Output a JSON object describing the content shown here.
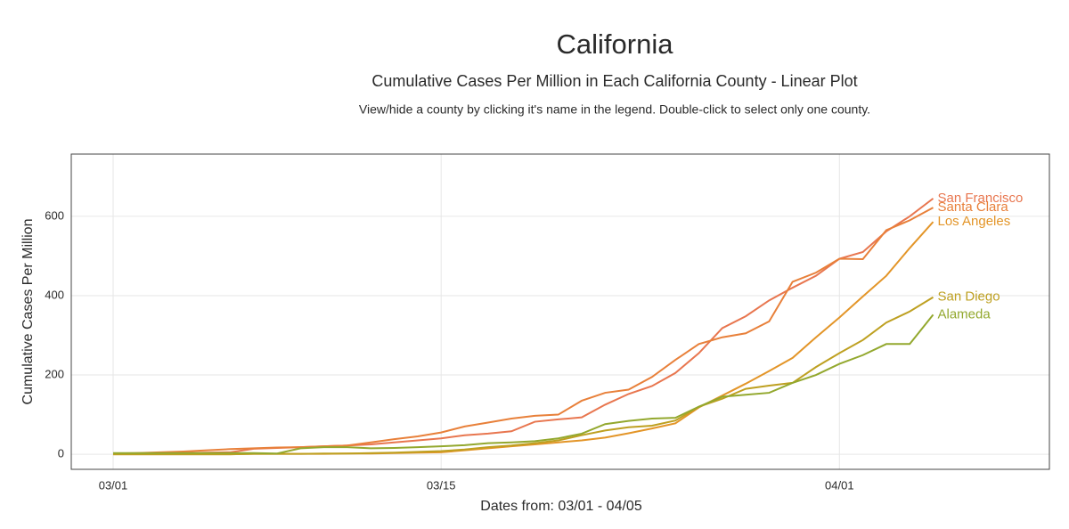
{
  "chart_data": {
    "type": "line",
    "title": "California",
    "subtitle": "Cumulative Cases Per Million in Each California County - Linear Plot",
    "note": "View/hide a county by clicking it's name in the legend. Double-click to select only one county.",
    "x_label": "Dates from: 03/01 - 04/05",
    "y_label": "Cumulative Cases Per Million",
    "categories": [
      "03/01",
      "03/02",
      "03/03",
      "03/04",
      "03/05",
      "03/06",
      "03/07",
      "03/08",
      "03/09",
      "03/10",
      "03/11",
      "03/12",
      "03/13",
      "03/14",
      "03/15",
      "03/16",
      "03/17",
      "03/18",
      "03/19",
      "03/20",
      "03/21",
      "03/22",
      "03/23",
      "03/24",
      "03/25",
      "03/26",
      "03/27",
      "03/28",
      "03/29",
      "03/30",
      "03/31",
      "04/01",
      "04/02",
      "04/03",
      "04/04",
      "04/05"
    ],
    "xticks": [
      "03/01",
      "03/15",
      "04/01"
    ],
    "ylim": [
      -38,
      757
    ],
    "yticks": [
      0,
      200,
      400,
      600
    ],
    "grid": true,
    "series": [
      {
        "name": "San Francisco",
        "color": "#e8764f",
        "values": [
          1,
          1,
          2,
          3,
          4,
          5,
          14,
          16,
          18,
          20,
          22,
          25,
          30,
          35,
          40,
          48,
          52,
          58,
          82,
          88,
          93,
          125,
          152,
          172,
          205,
          255,
          318,
          348,
          388,
          420,
          450,
          493,
          510,
          562,
          600,
          645
        ]
      },
      {
        "name": "Santa Clara",
        "color": "#e8803a",
        "values": [
          2,
          3,
          5,
          7,
          10,
          13,
          15,
          17,
          18,
          20,
          22,
          30,
          38,
          45,
          55,
          70,
          80,
          90,
          97,
          100,
          135,
          155,
          163,
          195,
          238,
          278,
          295,
          305,
          335,
          435,
          458,
          493,
          492,
          565,
          590,
          622
        ]
      },
      {
        "name": "Los Angeles",
        "color": "#e39528",
        "values": [
          0,
          0,
          0,
          0,
          0,
          0,
          1,
          1,
          1,
          1,
          2,
          2,
          3,
          4,
          5,
          10,
          15,
          20,
          25,
          30,
          35,
          42,
          53,
          65,
          78,
          118,
          148,
          178,
          210,
          243,
          295,
          345,
          398,
          450,
          520,
          586
        ]
      },
      {
        "name": "San Diego",
        "color": "#bea021",
        "values": [
          0,
          0,
          0,
          0,
          0,
          0,
          1,
          1,
          1,
          2,
          2,
          3,
          4,
          6,
          8,
          12,
          18,
          22,
          28,
          35,
          48,
          60,
          68,
          72,
          85,
          120,
          140,
          165,
          173,
          180,
          220,
          255,
          288,
          332,
          360,
          396
        ]
      },
      {
        "name": "Alameda",
        "color": "#93a82e",
        "values": [
          3,
          3,
          3,
          3,
          3,
          3,
          3,
          2,
          15,
          18,
          18,
          15,
          16,
          18,
          20,
          23,
          28,
          30,
          33,
          40,
          52,
          76,
          84,
          90,
          92,
          120,
          145,
          150,
          155,
          180,
          200,
          228,
          250,
          278,
          278,
          352
        ]
      }
    ]
  }
}
